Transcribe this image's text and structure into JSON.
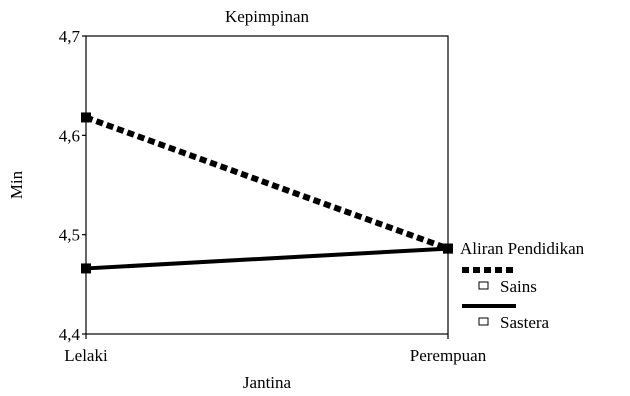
{
  "chart_data": {
    "type": "line",
    "title": "Kepimpinan",
    "xlabel": "Jantina",
    "ylabel": "Min",
    "categories": [
      "Lelaki",
      "Perempuan"
    ],
    "ylim": [
      4.4,
      4.7
    ],
    "yticks": [
      "4,4",
      "4,5",
      "4,6",
      "4,7"
    ],
    "legend_title": "Aliran Pendidikan",
    "legend_position": "right",
    "grid": false,
    "series": [
      {
        "name": "Sains",
        "values": [
          4.618,
          4.486
        ],
        "style": "dashed",
        "color": "#000000"
      },
      {
        "name": "Sastera",
        "values": [
          4.466,
          4.486
        ],
        "style": "solid",
        "color": "#000000"
      }
    ]
  }
}
